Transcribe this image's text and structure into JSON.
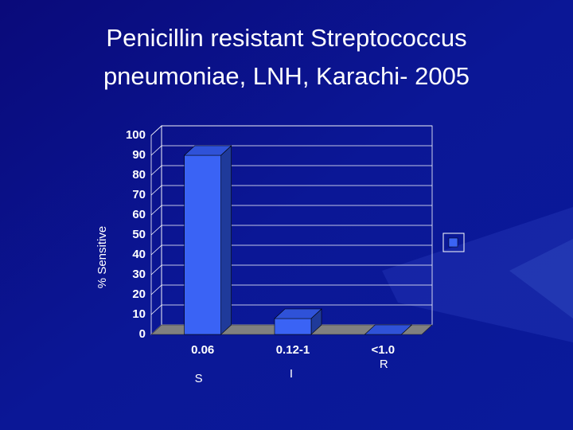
{
  "chart_data": {
    "type": "bar3d",
    "title": "Penicillin resistant Streptococcus pneumoniae, LNH, Karachi- 2005",
    "y_label": "% Sensitive",
    "categories": [
      "0.06",
      "0.12-1",
      "<1.0"
    ],
    "values": [
      90,
      8,
      0
    ],
    "category_groups": [
      "S",
      "I",
      "R"
    ],
    "color": "#3a63f5",
    "ylim": [
      0,
      100
    ],
    "yticks": [
      0,
      10,
      20,
      30,
      40,
      50,
      60,
      70,
      80,
      90,
      100
    ],
    "grid": true,
    "legend": "right"
  }
}
